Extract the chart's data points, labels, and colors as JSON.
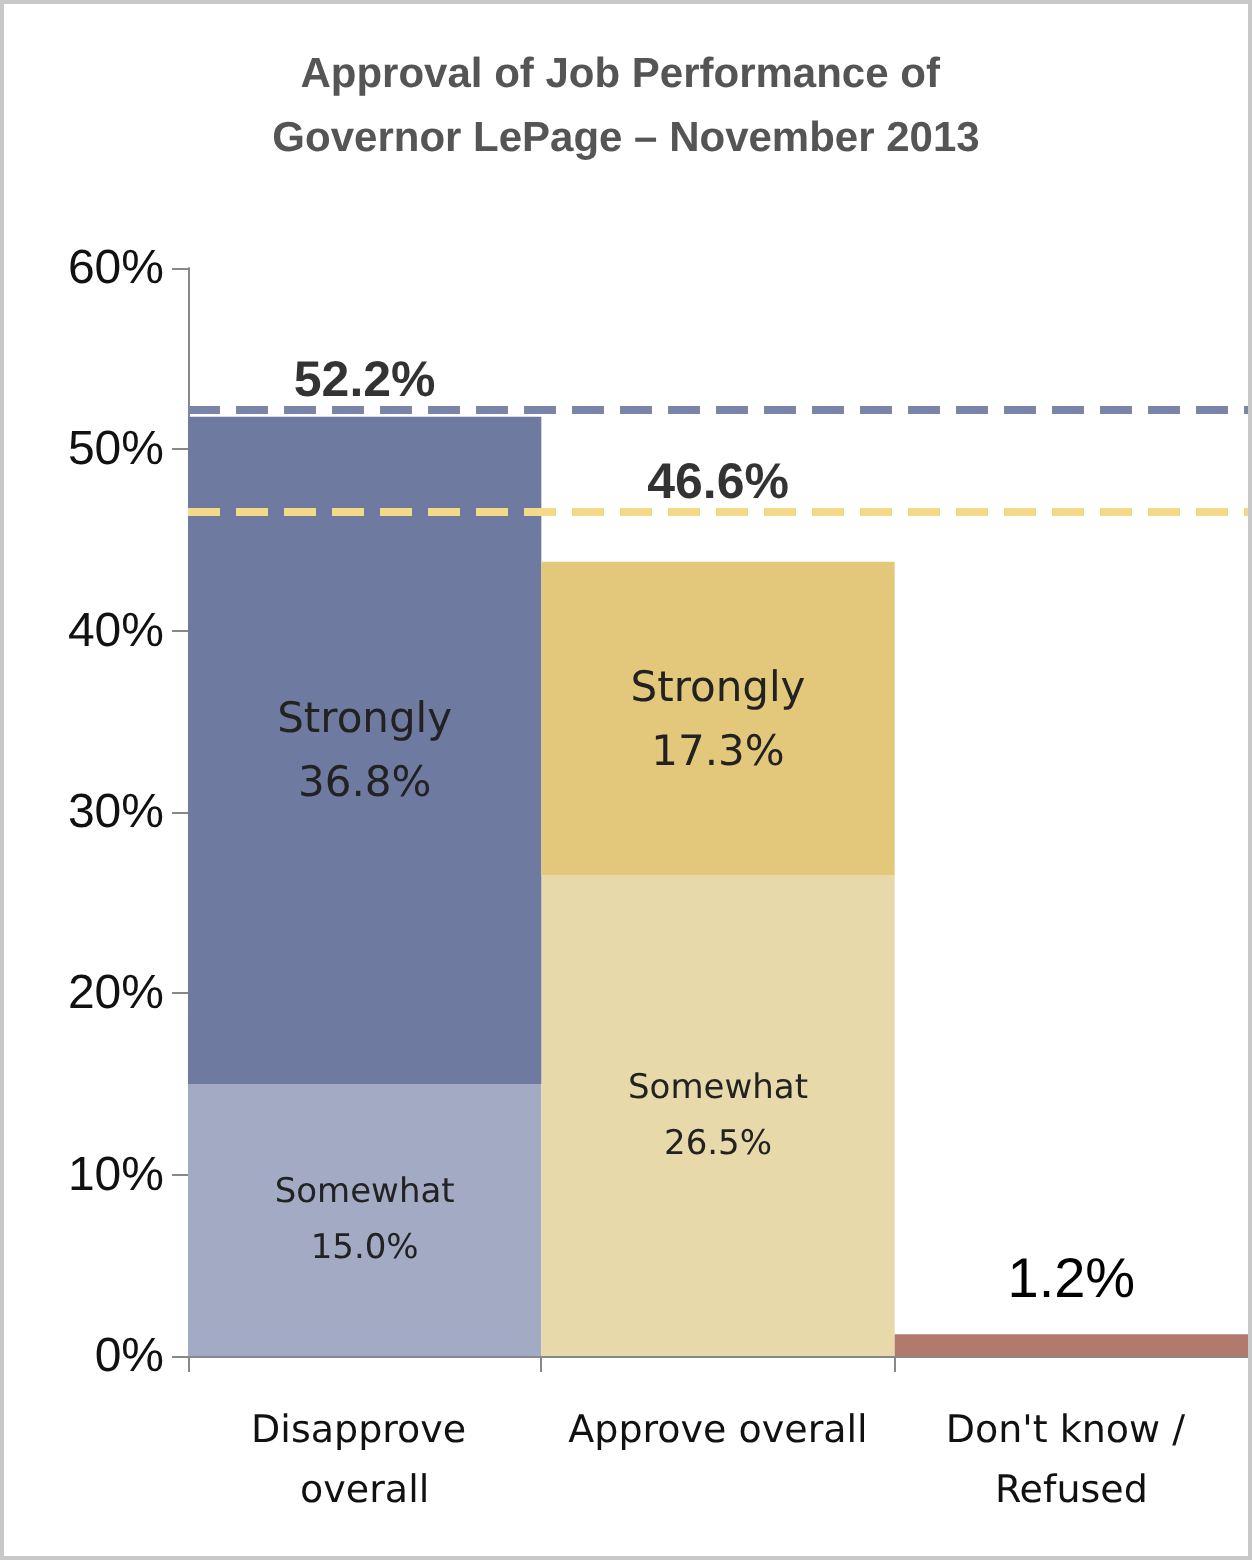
{
  "chart_data": {
    "type": "bar",
    "title": "Approval of Job Performance of Governor LePage – November 2013",
    "categories": [
      "Disapprove overall",
      "Approve overall",
      "Don't know / Refused"
    ],
    "stacked": true,
    "series": [
      {
        "name": "Somewhat",
        "colors": [
          "#a2aac4",
          "#e8d9aa",
          null
        ],
        "values": [
          15.0,
          26.5,
          null
        ],
        "value_labels": [
          "15.0%",
          "26.5%",
          null
        ]
      },
      {
        "name": "Strongly",
        "colors": [
          "#6f7aa1",
          "#e3c87c",
          null
        ],
        "values": [
          36.8,
          17.3,
          null
        ],
        "value_labels": [
          "36.8%",
          "17.3%",
          null
        ]
      },
      {
        "color": "#b07a6c",
        "values": [
          null,
          null,
          1.2
        ],
        "value_labels": [
          null,
          null,
          "1.2%"
        ]
      }
    ],
    "annotations": [
      {
        "text": "52.2%",
        "x": "Disapprove overall",
        "y": 52.2
      },
      {
        "text": "46.6%",
        "x": "Approve overall",
        "y": 46.6
      }
    ],
    "ref_lines": [
      {
        "axis": "y",
        "value": 52.2,
        "color": "#7a83a8",
        "line_style": "dashed"
      },
      {
        "axis": "y",
        "value": 46.6,
        "color": "#f5d98a",
        "line_style": "dashed"
      }
    ],
    "ylim": [
      0,
      60
    ],
    "yticks": [
      {
        "value": 0,
        "label": "0%"
      },
      {
        "value": 10,
        "label": "10%"
      },
      {
        "value": 20,
        "label": "20%"
      },
      {
        "value": 30,
        "label": "30%"
      },
      {
        "value": 40,
        "label": "40%"
      },
      {
        "value": 50,
        "label": "50%"
      },
      {
        "value": 60,
        "label": "60%"
      }
    ],
    "grid": false,
    "legend": false
  }
}
